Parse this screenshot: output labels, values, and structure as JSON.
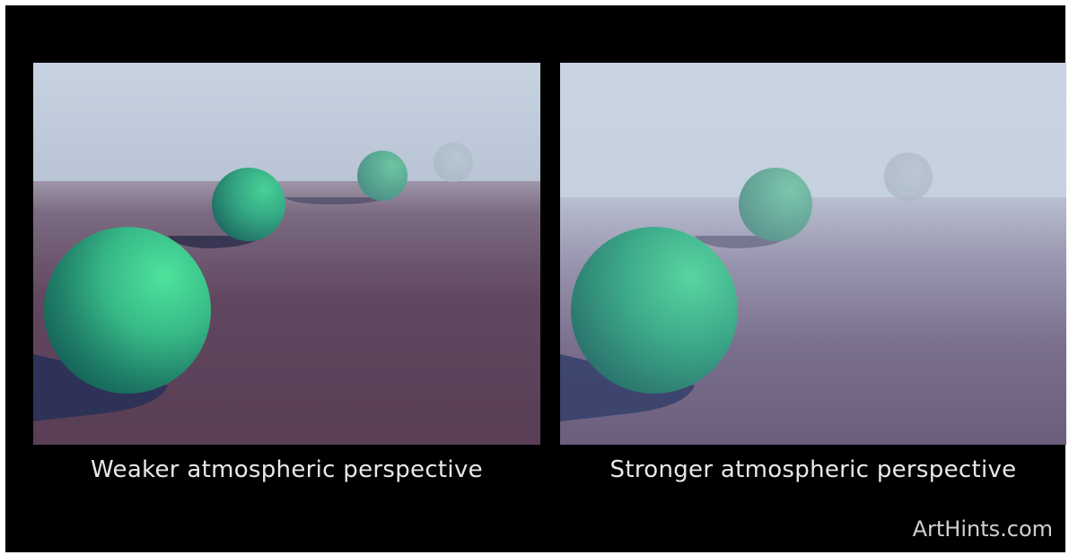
{
  "captions": {
    "left": "Weaker atmospheric perspective",
    "right": "Stronger atmospheric perspective"
  },
  "watermark": "ArtHints.com",
  "colors": {
    "background": "#000000",
    "sphere": "#3fbf88",
    "sky": "#c7d3e1",
    "ground_weak": "#5a4560",
    "ground_strong": "#6d6482",
    "caption_text": "#e8e8e8"
  }
}
